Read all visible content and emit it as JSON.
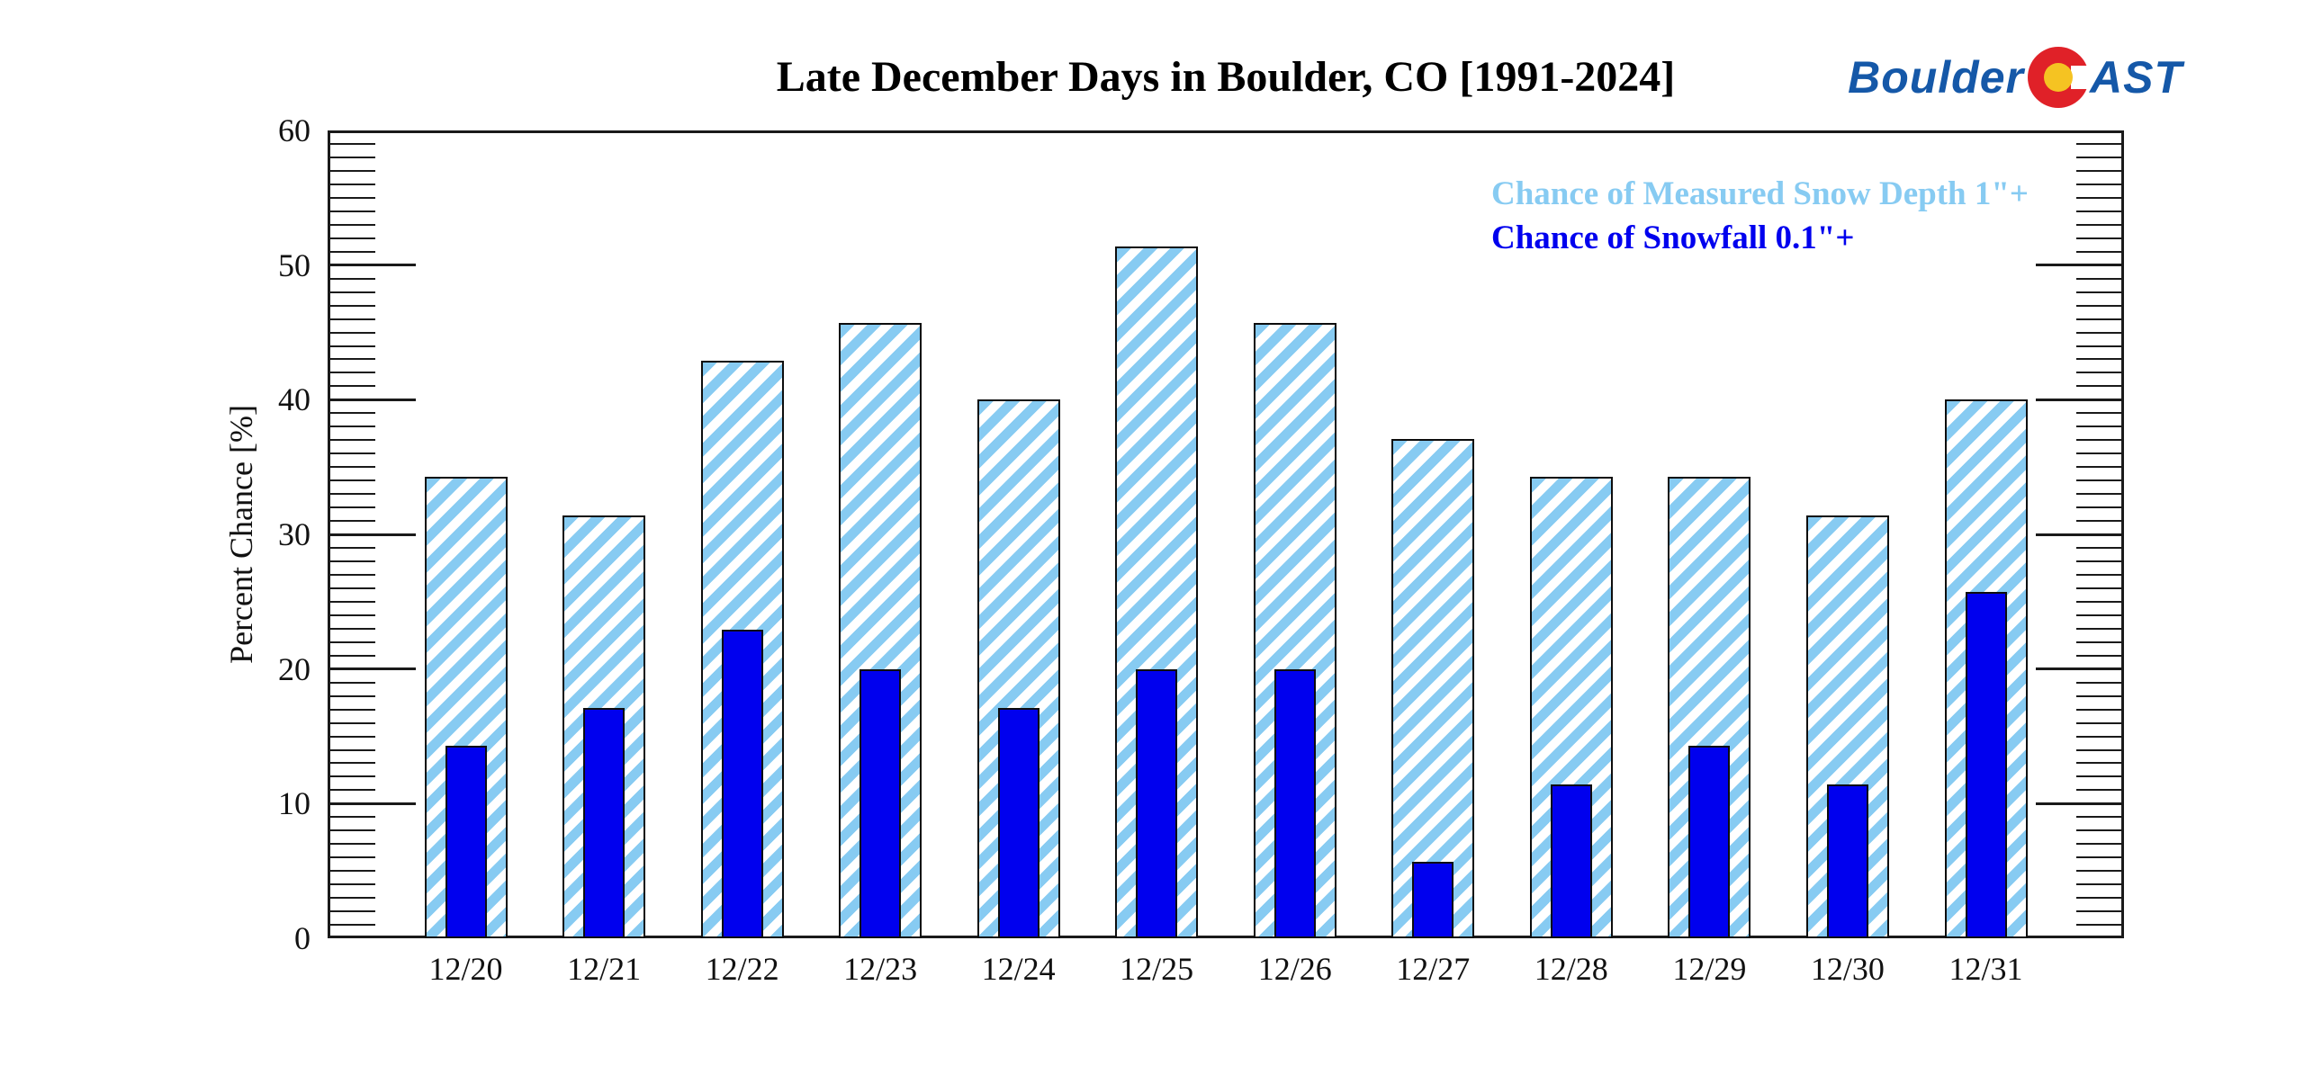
{
  "chart_data": {
    "type": "bar",
    "title": "Late December Days in Boulder, CO [1991-2024]",
    "xlabel": "",
    "ylabel": "Percent Chance [%]",
    "ylim": [
      0,
      60
    ],
    "y_major_step": 10,
    "y_minor_step": 1,
    "y_ticks": [
      "0",
      "10",
      "20",
      "30",
      "40",
      "50",
      "60"
    ],
    "grid": false,
    "legend_position": "top-right-inside",
    "bar_style": "overlaid",
    "categories": [
      "12/20",
      "12/21",
      "12/22",
      "12/23",
      "12/24",
      "12/25",
      "12/26",
      "12/27",
      "12/28",
      "12/29",
      "12/30",
      "12/31"
    ],
    "series": [
      {
        "name": "Chance of Measured Snow Depth 1\"+",
        "style": "hatched-diagonal",
        "color": "#87cbf2",
        "values": [
          34.3,
          31.4,
          42.9,
          45.7,
          40.0,
          51.4,
          45.7,
          37.1,
          34.3,
          34.3,
          31.4,
          40.0
        ]
      },
      {
        "name": "Chance of Snowfall 0.1\"+",
        "style": "solid",
        "color": "#0000ee",
        "values": [
          14.3,
          17.1,
          22.9,
          20.0,
          17.1,
          20.0,
          20.0,
          5.7,
          11.4,
          14.3,
          11.4,
          25.7
        ]
      }
    ],
    "axis_color": "#1a1a1a"
  },
  "logo": {
    "prefix": "Boulder",
    "suffix": "AST",
    "text_color": "#1558a8",
    "c_outer_color": "#e02128",
    "c_inner_color": "#f5c322"
  }
}
